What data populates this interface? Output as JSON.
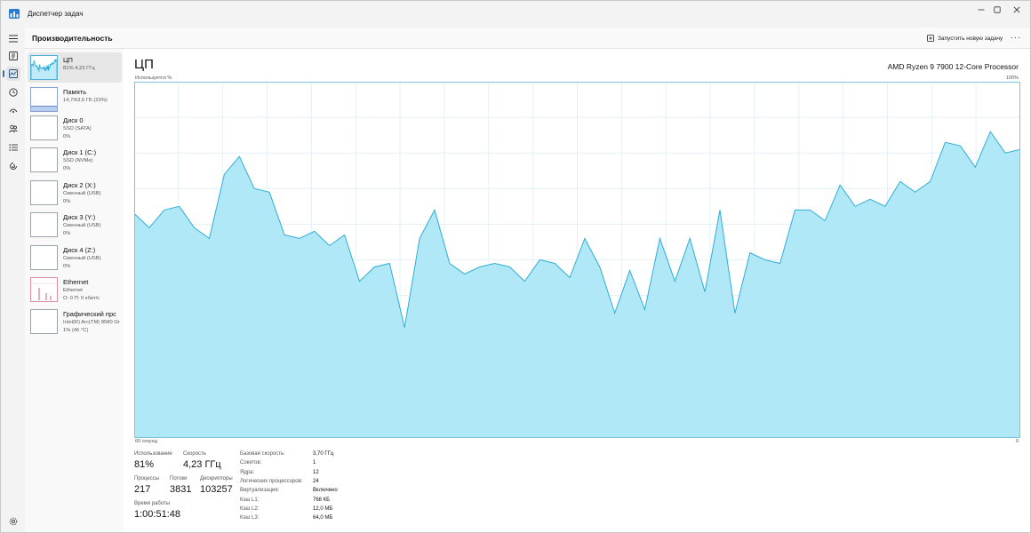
{
  "window": {
    "title": "Диспетчер задач"
  },
  "header": {
    "page_title": "Производительность",
    "run_task_label": "Запустить новую задачу",
    "more_label": "···"
  },
  "rail": {
    "items": [
      {
        "icon": "hamburger-menu-icon"
      },
      {
        "icon": "processes-icon"
      },
      {
        "icon": "performance-icon",
        "active": true
      },
      {
        "icon": "app-history-icon"
      },
      {
        "icon": "startup-apps-icon"
      },
      {
        "icon": "users-icon"
      },
      {
        "icon": "details-icon"
      },
      {
        "icon": "services-icon"
      }
    ],
    "settings_icon": "settings-icon"
  },
  "devices": [
    {
      "name": "ЦП",
      "sub1": "81%  4,23 ГГц",
      "sub2": "",
      "selected": true
    },
    {
      "name": "Память",
      "sub1": "14,7/63,6 ГБ (23%)",
      "sub2": ""
    },
    {
      "name": "Диск 0",
      "sub1": "SSD (SATA)",
      "sub2": "0%"
    },
    {
      "name": "Диск 1 (C:)",
      "sub1": "SSD (NVMe)",
      "sub2": "0%"
    },
    {
      "name": "Диск 2 (X:)",
      "sub1": "Сменный (USB)",
      "sub2": "0%"
    },
    {
      "name": "Диск 3 (Y:)",
      "sub1": "Сменный (USB)",
      "sub2": "0%"
    },
    {
      "name": "Диск 4 (Z:)",
      "sub1": "Сменный (USB)",
      "sub2": "0%"
    },
    {
      "name": "Ethernet",
      "sub1": "Ethernet",
      "sub2": "О: 0 П: 0 кбит/с"
    },
    {
      "name": "Графический прс",
      "sub1": "Intel(R) Arc(TM) 8580 Gr",
      "sub2": "1% (46 °C)"
    }
  ],
  "memory_usage_percent": 23,
  "main": {
    "title": "ЦП",
    "model": "AMD Ryzen 9 7900 12-Core Processor",
    "axis_top_left": "Используется %",
    "axis_top_right": "100%",
    "axis_bottom_left": "60 секунд",
    "axis_bottom_right": "0"
  },
  "chart_data": {
    "type": "area",
    "title": "ЦП",
    "ylabel": "Используется %",
    "xlabel": "60 секунд",
    "ylim": [
      0,
      100
    ],
    "x_range_seconds": [
      60,
      0
    ],
    "grid": true,
    "color": "#a9e5f6",
    "line_color": "#2eaed3",
    "series": [
      {
        "values": [
          63,
          59,
          64,
          65,
          59,
          56,
          74,
          79,
          70,
          69,
          57,
          56,
          58,
          54,
          57,
          44,
          48,
          49,
          31,
          56,
          64,
          49,
          46,
          48,
          49,
          48,
          44,
          50,
          49,
          45,
          56,
          48,
          35,
          47,
          36,
          56,
          44,
          56,
          41,
          64,
          35,
          52,
          50,
          49,
          64,
          64,
          61,
          71,
          65,
          67,
          65,
          72,
          69,
          72,
          83,
          82,
          76,
          86,
          80,
          81
        ]
      }
    ]
  },
  "stats": {
    "utilization_label": "Использование",
    "utilization_value": "81%",
    "speed_label": "Скорость",
    "speed_value": "4,23 ГГц",
    "processes_label": "Процессы",
    "processes_value": "217",
    "threads_label": "Потоки",
    "threads_value": "3831",
    "handles_label": "Дескрипторы",
    "handles_value": "103257",
    "uptime_label": "Время работы",
    "uptime_value": "1:00:51:48"
  },
  "specs": [
    {
      "label": "Базовая скорость:",
      "value": "3,70 ГГц"
    },
    {
      "label": "Сокетов:",
      "value": "1"
    },
    {
      "label": "Ядра:",
      "value": "12"
    },
    {
      "label": "Логических процессоров:",
      "value": "24"
    },
    {
      "label": "Виртуализация:",
      "value": "Включено"
    },
    {
      "label": "Кэш L1:",
      "value": "768 КБ"
    },
    {
      "label": "Кэш L2:",
      "value": "12,0 МБ"
    },
    {
      "label": "Кэш L3:",
      "value": "64,0 МБ"
    }
  ]
}
